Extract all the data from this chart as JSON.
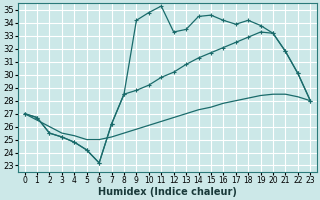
{
  "xlabel": "Humidex (Indice chaleur)",
  "bg_color": "#cce8e8",
  "grid_color": "#ffffff",
  "line_color": "#1a6b6b",
  "xlim": [
    -0.5,
    23.5
  ],
  "ylim": [
    22.5,
    35.5
  ],
  "xticks": [
    0,
    1,
    2,
    3,
    4,
    5,
    6,
    7,
    8,
    9,
    10,
    11,
    12,
    13,
    14,
    15,
    16,
    17,
    18,
    19,
    20,
    21,
    22,
    23
  ],
  "yticks": [
    23,
    24,
    25,
    26,
    27,
    28,
    29,
    30,
    31,
    32,
    33,
    34,
    35
  ],
  "line1_x": [
    0,
    1,
    2,
    3,
    4,
    5,
    6,
    7,
    8,
    9,
    10,
    11,
    12,
    13,
    14,
    15,
    16,
    17,
    18,
    19,
    20,
    21,
    22,
    23
  ],
  "line1_y": [
    27.0,
    26.7,
    25.5,
    25.2,
    24.8,
    24.2,
    23.2,
    26.2,
    28.5,
    34.2,
    34.8,
    35.3,
    33.3,
    33.5,
    34.5,
    34.6,
    34.2,
    33.9,
    34.2,
    33.8,
    33.2,
    31.8,
    30.1,
    28.0
  ],
  "line2_x": [
    0,
    1,
    2,
    3,
    4,
    5,
    6,
    7,
    8,
    9,
    10,
    11,
    12,
    13,
    14,
    15,
    16,
    17,
    18,
    19,
    20,
    21,
    22,
    23
  ],
  "line2_y": [
    27.0,
    26.7,
    25.5,
    25.2,
    24.8,
    24.2,
    23.2,
    26.2,
    28.5,
    28.8,
    29.2,
    29.8,
    30.2,
    30.8,
    31.3,
    31.7,
    32.1,
    32.5,
    32.9,
    33.3,
    33.2,
    31.8,
    30.1,
    28.0
  ],
  "line3_x": [
    0,
    1,
    2,
    3,
    4,
    5,
    6,
    7,
    8,
    9,
    10,
    11,
    12,
    13,
    14,
    15,
    16,
    17,
    18,
    19,
    20,
    21,
    22,
    23
  ],
  "line3_y": [
    27.0,
    26.5,
    26.0,
    25.5,
    25.3,
    25.0,
    25.0,
    25.2,
    25.5,
    25.8,
    26.1,
    26.4,
    26.7,
    27.0,
    27.3,
    27.5,
    27.8,
    28.0,
    28.2,
    28.4,
    28.5,
    28.5,
    28.3,
    28.0
  ]
}
